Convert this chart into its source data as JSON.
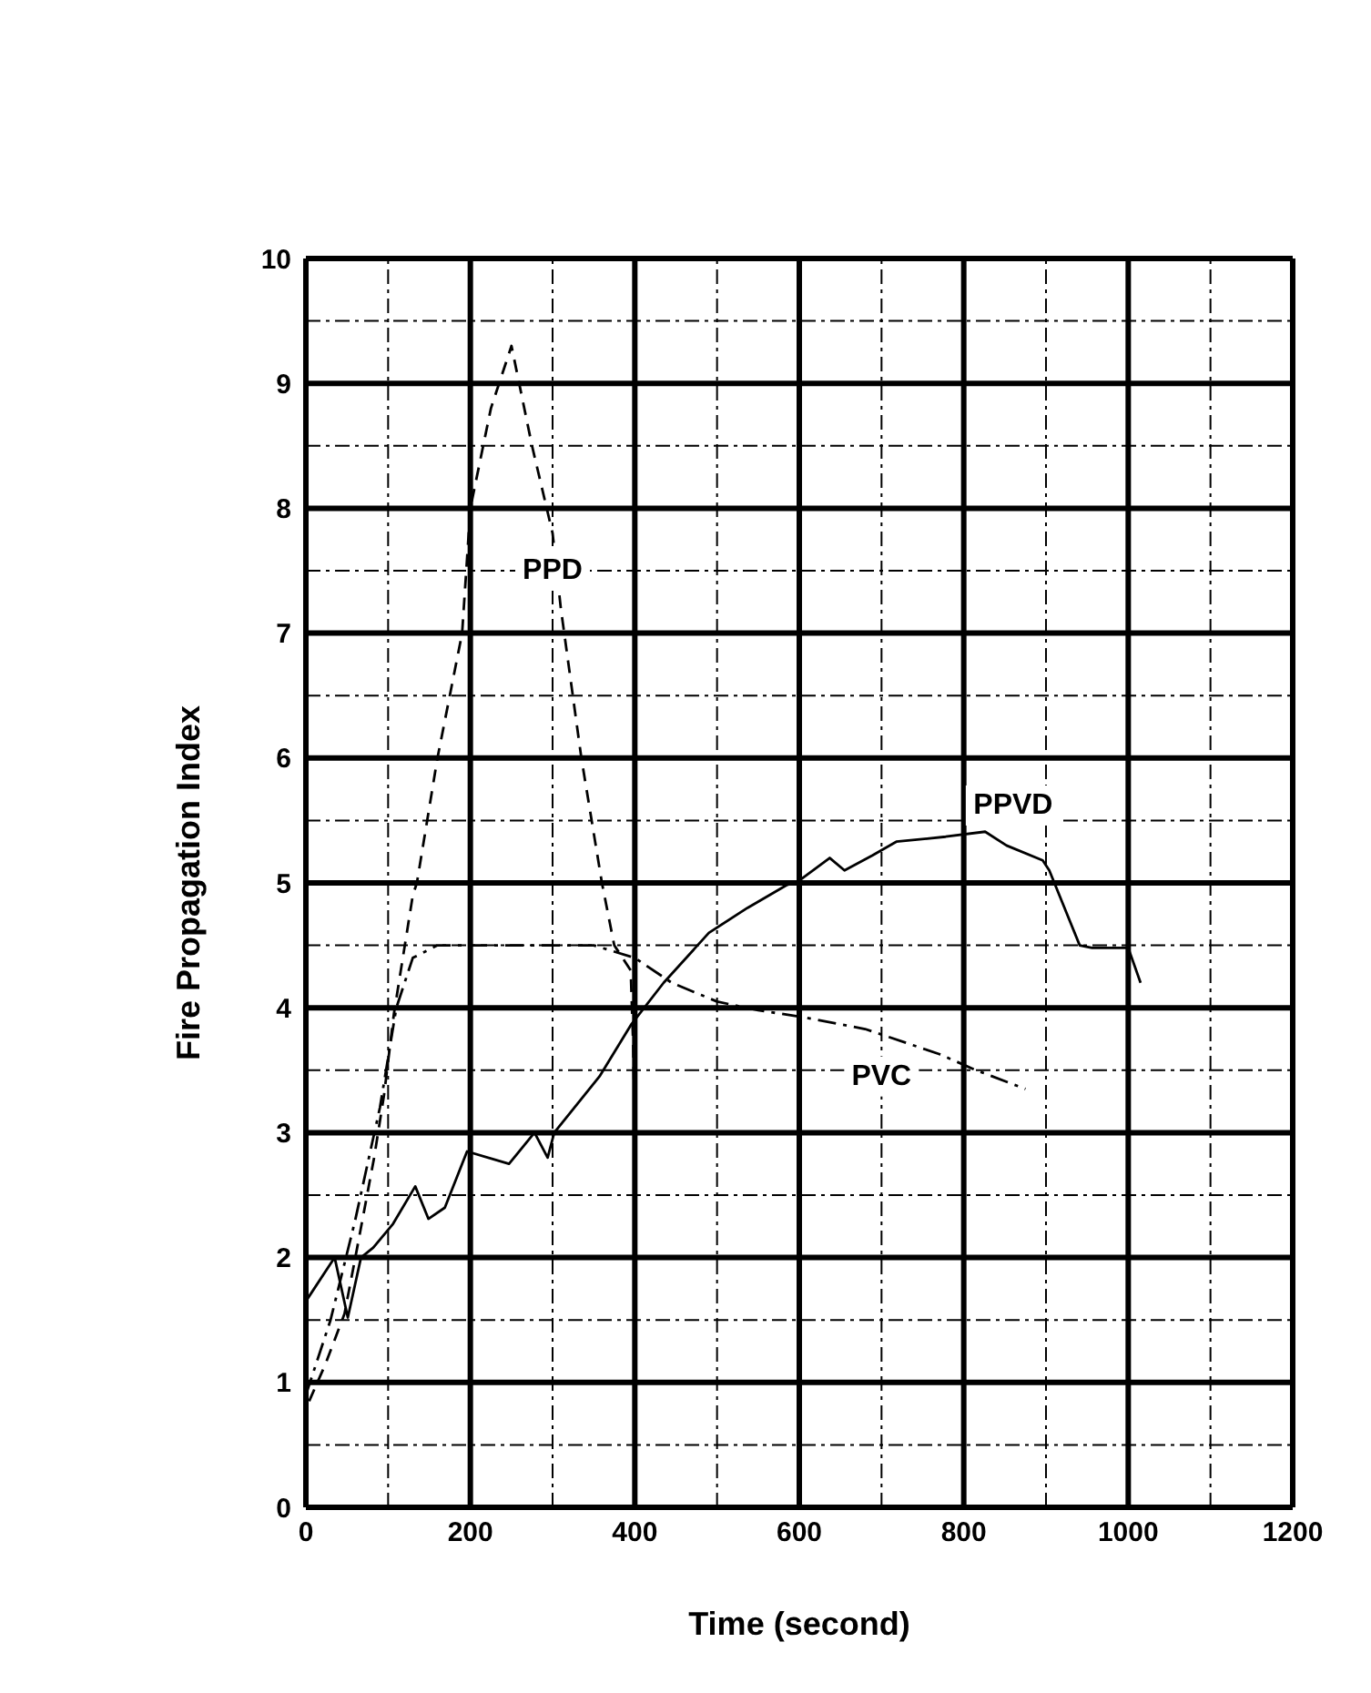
{
  "chart_data": {
    "type": "line",
    "xlabel": "Time (second)",
    "ylabel": "Fire Propagation Index",
    "xlim": [
      0,
      1200
    ],
    "ylim": [
      0,
      10
    ],
    "xticks": [
      0,
      200,
      400,
      600,
      800,
      1000,
      1200
    ],
    "yticks": [
      0,
      1,
      2,
      3,
      4,
      5,
      6,
      7,
      8,
      9,
      10
    ],
    "grid": true,
    "legend": false,
    "marker": "none",
    "series": [
      {
        "name": "PPD",
        "color": "#000000",
        "line_style": "dashed",
        "x": [
          4,
          24,
          47,
          63,
          83,
          95,
          107,
          130,
          135,
          160,
          190,
          200,
          225,
          250,
          275,
          300,
          310,
          335,
          360,
          375,
          395,
          398,
          400
        ],
        "values": [
          0.85,
          1.15,
          1.55,
          2.1,
          2.8,
          3.3,
          3.95,
          4.9,
          5,
          6,
          7,
          8,
          8.8,
          9.3,
          8.5,
          7.8,
          7.2,
          6,
          5,
          4.5,
          4.3,
          3.7,
          3.05
        ]
      },
      {
        "name": "PPVD",
        "color": "#000000",
        "line_style": "solid",
        "x": [
          0,
          35,
          51,
          67,
          82,
          106,
          133,
          149,
          169,
          196,
          247,
          278,
          294,
          302,
          357,
          396,
          435,
          490,
          537,
          584,
          600,
          637,
          655,
          689,
          718,
          778,
          826,
          852,
          896,
          904,
          941,
          956,
          1000,
          1015
        ],
        "values": [
          1.65,
          2,
          1.52,
          2,
          2.08,
          2.27,
          2.57,
          2.31,
          2.4,
          2.85,
          2.75,
          3,
          2.8,
          3,
          3.45,
          3.87,
          4.2,
          4.6,
          4.8,
          4.98,
          5.02,
          5.2,
          5.1,
          5.22,
          5.33,
          5.37,
          5.41,
          5.3,
          5.18,
          5.1,
          4.5,
          4.48,
          4.48,
          4.2
        ]
      },
      {
        "name": "PVC",
        "color": "#000000",
        "line_style": "dashed",
        "x": [
          0,
          30,
          60,
          90,
          110,
          130,
          160,
          250,
          350,
          400,
          445,
          500,
          550,
          600,
          680,
          770,
          815,
          875
        ],
        "values": [
          0.9,
          1.5,
          2.3,
          3.2,
          4,
          4.4,
          4.5,
          4.5,
          4.5,
          4.4,
          4.2,
          4.05,
          3.98,
          3.93,
          3.83,
          3.63,
          3.5,
          3.35
        ]
      }
    ]
  }
}
